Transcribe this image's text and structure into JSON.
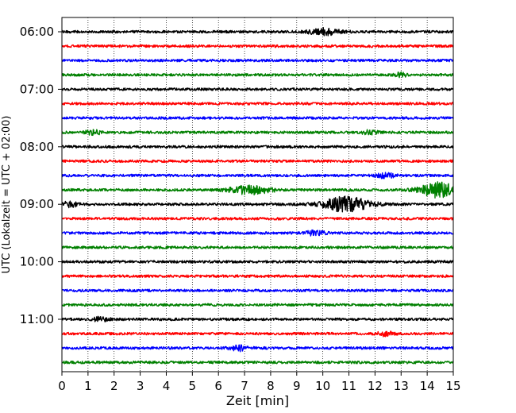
{
  "chart_data": {
    "type": "line",
    "title": "",
    "xlabel": "Zeit  [min]",
    "ylabel": "UTC (Lokalzeit = UTC + 02:00)",
    "xlim": [
      0,
      15
    ],
    "x_ticks": [
      "0",
      "1",
      "2",
      "3",
      "4",
      "5",
      "6",
      "7",
      "8",
      "9",
      "10",
      "11",
      "12",
      "13",
      "14",
      "15"
    ],
    "y_ticks": [
      "06:00",
      "07:00",
      "08:00",
      "09:00",
      "10:00",
      "11:00"
    ],
    "grid": "vertical dotted lines at each minute",
    "line_colors": [
      "#000000",
      "#ff0000",
      "#0000ff",
      "#008000"
    ],
    "traces": [
      {
        "time": "06:00",
        "color": "#000000",
        "events": [
          {
            "center": 10.1,
            "width": 0.6,
            "amp": 4
          }
        ]
      },
      {
        "time": "06:15",
        "color": "#ff0000",
        "events": []
      },
      {
        "time": "06:30",
        "color": "#0000ff",
        "events": []
      },
      {
        "time": "06:45",
        "color": "#008000",
        "events": [
          {
            "center": 13.0,
            "width": 0.2,
            "amp": 3
          }
        ]
      },
      {
        "time": "07:00",
        "color": "#000000",
        "events": []
      },
      {
        "time": "07:15",
        "color": "#ff0000",
        "events": []
      },
      {
        "time": "07:30",
        "color": "#0000ff",
        "events": []
      },
      {
        "time": "07:45",
        "color": "#008000",
        "events": [
          {
            "center": 1.2,
            "width": 0.3,
            "amp": 2.5
          },
          {
            "center": 11.8,
            "width": 0.3,
            "amp": 2.5
          }
        ]
      },
      {
        "time": "08:00",
        "color": "#000000",
        "events": []
      },
      {
        "time": "08:15",
        "color": "#ff0000",
        "events": []
      },
      {
        "time": "08:30",
        "color": "#0000ff",
        "events": [
          {
            "center": 12.4,
            "width": 0.4,
            "amp": 2.5
          }
        ]
      },
      {
        "time": "08:45",
        "color": "#008000",
        "events": [
          {
            "center": 7.2,
            "width": 0.8,
            "amp": 5
          },
          {
            "center": 14.4,
            "width": 0.7,
            "amp": 9
          }
        ]
      },
      {
        "time": "09:00",
        "color": "#000000",
        "events": [
          {
            "center": 0.3,
            "width": 0.3,
            "amp": 3
          },
          {
            "center": 10.9,
            "width": 0.9,
            "amp": 9
          }
        ]
      },
      {
        "time": "09:15",
        "color": "#ff0000",
        "events": []
      },
      {
        "time": "09:30",
        "color": "#0000ff",
        "events": [
          {
            "center": 9.7,
            "width": 0.4,
            "amp": 2.5
          }
        ]
      },
      {
        "time": "09:45",
        "color": "#008000",
        "events": []
      },
      {
        "time": "10:00",
        "color": "#000000",
        "events": []
      },
      {
        "time": "10:15",
        "color": "#ff0000",
        "events": []
      },
      {
        "time": "10:30",
        "color": "#0000ff",
        "events": []
      },
      {
        "time": "10:45",
        "color": "#008000",
        "events": []
      },
      {
        "time": "11:00",
        "color": "#000000",
        "events": [
          {
            "center": 1.5,
            "width": 0.3,
            "amp": 2.5
          }
        ]
      },
      {
        "time": "11:15",
        "color": "#ff0000",
        "events": [
          {
            "center": 12.4,
            "width": 0.3,
            "amp": 2.5
          }
        ]
      },
      {
        "time": "11:30",
        "color": "#0000ff",
        "events": [
          {
            "center": 6.8,
            "width": 0.4,
            "amp": 3
          }
        ]
      },
      {
        "time": "11:45",
        "color": "#008000",
        "events": []
      }
    ]
  }
}
